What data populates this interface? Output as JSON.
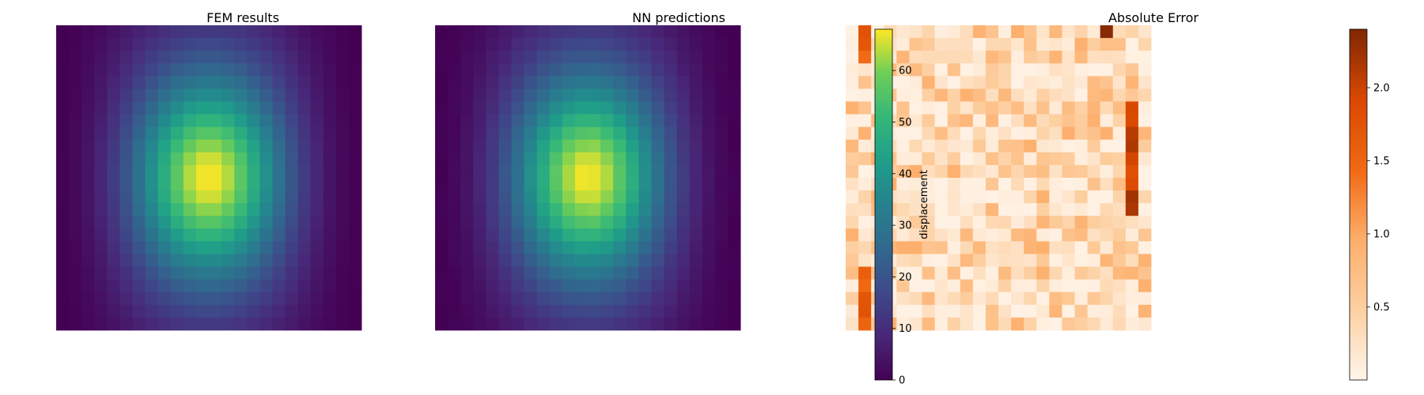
{
  "chart_data": [
    {
      "type": "heatmap",
      "title": "FEM results",
      "grid": [
        24,
        24
      ],
      "field": "displacement",
      "range": [
        0,
        68
      ],
      "colormap": "viridis",
      "axes_visible": false
    },
    {
      "type": "heatmap",
      "title": "NN predictions",
      "grid": [
        24,
        24
      ],
      "field": "displacement",
      "range": [
        0,
        68
      ],
      "colormap": "viridis",
      "axes_visible": false,
      "colorbar": {
        "label": "displacement",
        "ticks": [
          "0",
          "10",
          "20",
          "30",
          "40",
          "50",
          "60"
        ],
        "tick_values": [
          0,
          10,
          20,
          30,
          40,
          50,
          60
        ],
        "range": [
          0,
          68
        ]
      }
    },
    {
      "type": "heatmap",
      "title": "Absolute Error",
      "grid": [
        24,
        24
      ],
      "range": [
        0,
        2.4
      ],
      "colormap": "Oranges",
      "axes_visible": false,
      "colorbar": {
        "label": "",
        "ticks": [
          "0.5",
          "1.0",
          "1.5",
          "2.0"
        ],
        "tick_values": [
          0.5,
          1.0,
          1.5,
          2.0
        ],
        "range": [
          0,
          2.4
        ]
      }
    }
  ]
}
